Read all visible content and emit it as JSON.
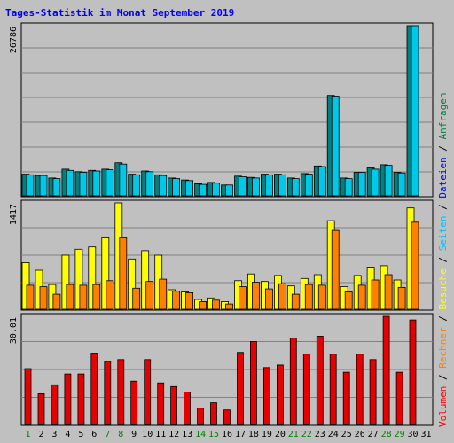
{
  "chart_data": {
    "type": "bar",
    "title": "Tages-Statistik im Monat September 2019",
    "categories": [
      "1",
      "2",
      "3",
      "4",
      "5",
      "6",
      "7",
      "8",
      "9",
      "10",
      "11",
      "12",
      "13",
      "14",
      "15",
      "16",
      "17",
      "18",
      "19",
      "20",
      "21",
      "22",
      "23",
      "24",
      "25",
      "26",
      "27",
      "28",
      "29",
      "30",
      "31"
    ],
    "category_colors": [
      "#008000",
      "#000000",
      "#000000",
      "#000000",
      "#000000",
      "#000000",
      "#008000",
      "#008000",
      "#000000",
      "#000000",
      "#000000",
      "#000000",
      "#000000",
      "#008000",
      "#008000",
      "#000000",
      "#000000",
      "#000000",
      "#000000",
      "#000000",
      "#008000",
      "#008000",
      "#000000",
      "#000000",
      "#000000",
      "#000000",
      "#000000",
      "#008000",
      "#008000",
      "#000000",
      "#000000"
    ],
    "legend": [
      {
        "text": "Volumen",
        "color": "#ff0000"
      },
      {
        "text": "Rechner",
        "color": "#ff8000"
      },
      {
        "text": "Besuche",
        "color": "#ffff00"
      },
      {
        "text": "Seiten",
        "color": "#00c0ff"
      },
      {
        "text": "Dateien",
        "color": "#0000ff"
      },
      {
        "text": "Anfragen",
        "color": "#008040"
      }
    ],
    "panels": [
      {
        "id": "top",
        "max_label": "26786",
        "max_value": 26786,
        "series": [
          {
            "name": "Anfragen",
            "color": "#008080",
            "values": [
              3400,
              3200,
              2800,
              4200,
              3800,
              4000,
              4200,
              5200,
              3400,
              3900,
              3300,
              2800,
              2500,
              1900,
              2100,
              1700,
              3100,
              2900,
              3400,
              3400,
              2800,
              3500,
              4700,
              15800,
              2800,
              3700,
              4400,
              4900,
              3700,
              26786,
              null
            ]
          },
          {
            "name": "Dateien",
            "color": "#00c8e8",
            "values": [
              3300,
              3200,
              2700,
              4000,
              3700,
              3900,
              4100,
              5000,
              3300,
              3800,
              3200,
              2700,
              2400,
              1800,
              2000,
              1700,
              3000,
              2800,
              3300,
              3300,
              2700,
              3400,
              4600,
              15700,
              2700,
              3700,
              4200,
              4800,
              3600,
              26786,
              null
            ]
          }
        ]
      },
      {
        "id": "mid",
        "max_label": "1417",
        "max_value": 1417,
        "series": [
          {
            "name": "Besuche",
            "color": "#ffff00",
            "values": [
              620,
              520,
              330,
              720,
              800,
              830,
              950,
              1417,
              670,
              780,
              720,
              260,
              230,
              130,
              150,
              100,
              380,
              470,
              370,
              450,
              310,
              410,
              460,
              1180,
              300,
              450,
              560,
              580,
              390,
              1350,
              null
            ]
          },
          {
            "name": "Rechner",
            "color": "#ff8000",
            "values": [
              320,
              300,
              200,
              330,
              320,
              330,
              380,
              950,
              280,
              370,
              400,
              240,
              220,
              100,
              120,
              70,
              300,
              360,
              270,
              340,
              200,
              330,
              320,
              1050,
              230,
              320,
              390,
              460,
              290,
              1160,
              null
            ]
          }
        ]
      },
      {
        "id": "bot",
        "max_label": "30.01",
        "max_value": 30.01,
        "series": [
          {
            "name": "Volumen",
            "color": "#e80000",
            "values": [
              15.5,
              8.5,
              11,
              14,
              14,
              19.8,
              17.5,
              18,
              12,
              18,
              11.5,
              10.5,
              9,
              4.5,
              6,
              4,
              20,
              23,
              15.8,
              16.5,
              24,
              19.5,
              24.5,
              19.5,
              14.5,
              19.5,
              18,
              30.01,
              14.5,
              29,
              null
            ]
          }
        ]
      }
    ]
  }
}
